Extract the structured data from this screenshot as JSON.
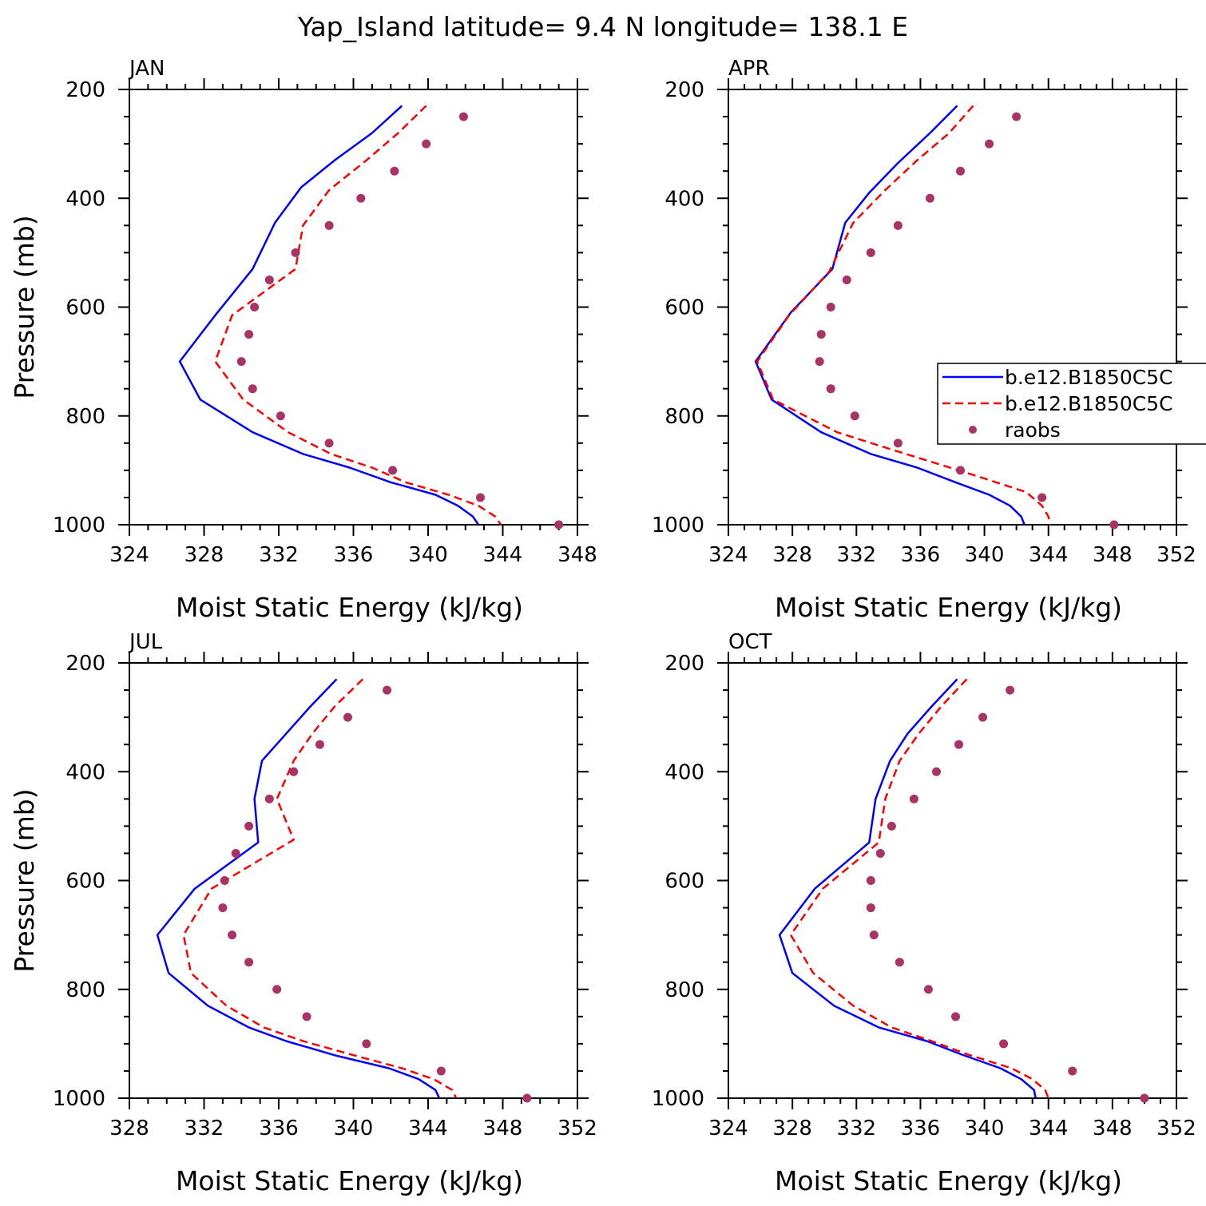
{
  "title": "Yap_Island  latitude= 9.4 N longitude= 138.1 E",
  "legend": {
    "entries": [
      {
        "label": "b.e12.B1850C5C",
        "color": "#0000ff",
        "style": "solid"
      },
      {
        "label": "b.e12.B1850C5C",
        "color": "#ff0000",
        "style": "dashed"
      },
      {
        "label": "raobs",
        "color": "#aa3366",
        "style": "dots"
      }
    ]
  },
  "chart_data": [
    {
      "type": "line",
      "panel_label": "JAN",
      "xlabel": "Moist Static Energy (kJ/kg)",
      "ylabel": "Pressure (mb)",
      "xlim": [
        324,
        348
      ],
      "ylim": [
        200,
        1000
      ],
      "y_inverted": true,
      "xticks": [
        324,
        328,
        332,
        336,
        340,
        344,
        348
      ],
      "yticks": [
        200,
        400,
        600,
        800,
        1000
      ],
      "series": [
        {
          "name": "b.e12.B1850C5C",
          "color": "#0000ff",
          "style": "solid",
          "points": [
            [
              338.6,
              230
            ],
            [
              337.0,
              280
            ],
            [
              335.0,
              330
            ],
            [
              333.2,
              380
            ],
            [
              331.8,
              445
            ],
            [
              330.6,
              530
            ],
            [
              328.6,
              615
            ],
            [
              326.7,
              700
            ],
            [
              327.8,
              770
            ],
            [
              330.6,
              830
            ],
            [
              333.3,
              870
            ],
            [
              335.8,
              895
            ],
            [
              338.0,
              922
            ],
            [
              340.4,
              945
            ],
            [
              341.6,
              965
            ],
            [
              342.4,
              985
            ],
            [
              342.7,
              1000
            ]
          ]
        },
        {
          "name": "b.e12.B1850C5C",
          "color": "#ff0000",
          "style": "dashed",
          "points": [
            [
              339.9,
              230
            ],
            [
              338.4,
              280
            ],
            [
              336.7,
              330
            ],
            [
              334.7,
              385
            ],
            [
              333.3,
              450
            ],
            [
              332.9,
              530
            ],
            [
              329.5,
              615
            ],
            [
              328.6,
              700
            ],
            [
              330.1,
              770
            ],
            [
              332.5,
              830
            ],
            [
              334.8,
              870
            ],
            [
              337.0,
              895
            ],
            [
              338.8,
              922
            ],
            [
              341.1,
              945
            ],
            [
              342.7,
              965
            ],
            [
              343.6,
              985
            ],
            [
              343.9,
              1000
            ]
          ]
        },
        {
          "name": "raobs",
          "color": "#aa3366",
          "style": "dots",
          "points": [
            [
              341.9,
              250
            ],
            [
              339.9,
              300
            ],
            [
              338.2,
              350
            ],
            [
              336.4,
              400
            ],
            [
              334.7,
              450
            ],
            [
              332.9,
              500
            ],
            [
              331.5,
              550
            ],
            [
              330.7,
              600
            ],
            [
              330.4,
              650
            ],
            [
              330.0,
              700
            ],
            [
              330.6,
              750
            ],
            [
              332.1,
              800
            ],
            [
              334.7,
              850
            ],
            [
              338.1,
              900
            ],
            [
              342.8,
              950
            ],
            [
              347.0,
              1000
            ]
          ]
        }
      ]
    },
    {
      "type": "line",
      "panel_label": "APR",
      "xlabel": "Moist Static Energy (kJ/kg)",
      "ylabel": "",
      "xlim": [
        324,
        352
      ],
      "ylim": [
        200,
        1000
      ],
      "y_inverted": true,
      "xticks": [
        324,
        328,
        332,
        336,
        340,
        344,
        348,
        352
      ],
      "yticks": [
        200,
        400,
        600,
        800,
        1000
      ],
      "series": [
        {
          "name": "b.e12.B1850C5C",
          "color": "#0000ff",
          "style": "solid",
          "points": [
            [
              338.3,
              230
            ],
            [
              336.6,
              280
            ],
            [
              334.6,
              335
            ],
            [
              332.8,
              390
            ],
            [
              331.3,
              445
            ],
            [
              330.5,
              530
            ],
            [
              327.9,
              610
            ],
            [
              325.7,
              700
            ],
            [
              326.7,
              770
            ],
            [
              329.8,
              830
            ],
            [
              332.9,
              870
            ],
            [
              335.8,
              895
            ],
            [
              338.2,
              922
            ],
            [
              340.3,
              945
            ],
            [
              341.6,
              965
            ],
            [
              342.3,
              985
            ],
            [
              342.5,
              1000
            ]
          ]
        },
        {
          "name": "b.e12.B1850C5C",
          "color": "#ff0000",
          "style": "dashed",
          "points": [
            [
              339.3,
              230
            ],
            [
              337.8,
              280
            ],
            [
              335.8,
              330
            ],
            [
              333.8,
              385
            ],
            [
              331.8,
              445
            ],
            [
              330.3,
              535
            ],
            [
              327.8,
              615
            ],
            [
              325.8,
              700
            ],
            [
              326.8,
              770
            ],
            [
              330.8,
              830
            ],
            [
              334.0,
              860
            ],
            [
              337.3,
              890
            ],
            [
              340.0,
              915
            ],
            [
              342.6,
              940
            ],
            [
              343.6,
              965
            ],
            [
              344.0,
              985
            ],
            [
              344.1,
              1000
            ]
          ]
        },
        {
          "name": "raobs",
          "color": "#aa3366",
          "style": "dots",
          "points": [
            [
              342.0,
              250
            ],
            [
              340.3,
              300
            ],
            [
              338.5,
              350
            ],
            [
              336.6,
              400
            ],
            [
              334.6,
              450
            ],
            [
              332.9,
              500
            ],
            [
              331.4,
              550
            ],
            [
              330.4,
              600
            ],
            [
              329.8,
              650
            ],
            [
              329.7,
              700
            ],
            [
              330.4,
              750
            ],
            [
              331.9,
              800
            ],
            [
              334.6,
              850
            ],
            [
              338.5,
              900
            ],
            [
              343.6,
              950
            ],
            [
              348.1,
              1000
            ]
          ]
        }
      ]
    },
    {
      "type": "line",
      "panel_label": "JUL",
      "xlabel": "Moist Static Energy (kJ/kg)",
      "ylabel": "Pressure (mb)",
      "xlim": [
        328,
        352
      ],
      "ylim": [
        200,
        1000
      ],
      "y_inverted": true,
      "xticks": [
        328,
        332,
        336,
        340,
        344,
        348,
        352
      ],
      "yticks": [
        200,
        400,
        600,
        800,
        1000
      ],
      "series": [
        {
          "name": "b.e12.B1850C5C",
          "color": "#0000ff",
          "style": "solid",
          "points": [
            [
              339.1,
              230
            ],
            [
              337.7,
              280
            ],
            [
              336.4,
              330
            ],
            [
              335.1,
              380
            ],
            [
              334.7,
              450
            ],
            [
              334.9,
              530
            ],
            [
              331.5,
              615
            ],
            [
              329.5,
              700
            ],
            [
              330.1,
              770
            ],
            [
              332.2,
              830
            ],
            [
              334.4,
              870
            ],
            [
              336.4,
              895
            ],
            [
              339.1,
              922
            ],
            [
              341.9,
              945
            ],
            [
              343.5,
              965
            ],
            [
              344.4,
              985
            ],
            [
              344.6,
              1000
            ]
          ]
        },
        {
          "name": "b.e12.B1850C5C",
          "color": "#ff0000",
          "style": "dashed",
          "points": [
            [
              340.5,
              230
            ],
            [
              339.0,
              280
            ],
            [
              337.8,
              330
            ],
            [
              336.8,
              380
            ],
            [
              335.9,
              450
            ],
            [
              336.8,
              525
            ],
            [
              332.4,
              615
            ],
            [
              330.9,
              700
            ],
            [
              331.3,
              770
            ],
            [
              333.2,
              830
            ],
            [
              335.2,
              870
            ],
            [
              337.3,
              895
            ],
            [
              339.9,
              920
            ],
            [
              342.6,
              945
            ],
            [
              344.3,
              965
            ],
            [
              345.3,
              985
            ],
            [
              345.5,
              1000
            ]
          ]
        },
        {
          "name": "raobs",
          "color": "#aa3366",
          "style": "dots",
          "points": [
            [
              341.8,
              250
            ],
            [
              339.7,
              300
            ],
            [
              338.2,
              350
            ],
            [
              336.8,
              400
            ],
            [
              335.5,
              450
            ],
            [
              334.4,
              500
            ],
            [
              333.7,
              550
            ],
            [
              333.1,
              600
            ],
            [
              333.0,
              650
            ],
            [
              333.5,
              700
            ],
            [
              334.4,
              750
            ],
            [
              335.9,
              800
            ],
            [
              337.5,
              850
            ],
            [
              340.7,
              900
            ],
            [
              344.7,
              950
            ],
            [
              349.3,
              1000
            ]
          ]
        }
      ]
    },
    {
      "type": "line",
      "panel_label": "OCT",
      "xlabel": "Moist Static Energy (kJ/kg)",
      "ylabel": "",
      "xlim": [
        324,
        352
      ],
      "ylim": [
        200,
        1000
      ],
      "y_inverted": true,
      "xticks": [
        324,
        328,
        332,
        336,
        340,
        344,
        348,
        352
      ],
      "yticks": [
        200,
        400,
        600,
        800,
        1000
      ],
      "series": [
        {
          "name": "b.e12.B1850C5C",
          "color": "#0000ff",
          "style": "solid",
          "points": [
            [
              338.3,
              230
            ],
            [
              336.7,
              280
            ],
            [
              335.2,
              330
            ],
            [
              334.1,
              380
            ],
            [
              333.2,
              450
            ],
            [
              332.8,
              530
            ],
            [
              329.4,
              615
            ],
            [
              327.2,
              700
            ],
            [
              328.0,
              770
            ],
            [
              330.6,
              830
            ],
            [
              333.4,
              870
            ],
            [
              336.4,
              895
            ],
            [
              338.6,
              920
            ],
            [
              341.0,
              945
            ],
            [
              342.3,
              965
            ],
            [
              343.1,
              985
            ],
            [
              343.2,
              1000
            ]
          ]
        },
        {
          "name": "b.e12.B1850C5C",
          "color": "#ff0000",
          "style": "dashed",
          "points": [
            [
              338.9,
              230
            ],
            [
              337.3,
              280
            ],
            [
              335.9,
              330
            ],
            [
              334.7,
              380
            ],
            [
              333.8,
              450
            ],
            [
              333.4,
              530
            ],
            [
              329.9,
              615
            ],
            [
              327.9,
              700
            ],
            [
              329.3,
              770
            ],
            [
              331.8,
              830
            ],
            [
              334.2,
              870
            ],
            [
              336.7,
              895
            ],
            [
              339.0,
              920
            ],
            [
              341.7,
              945
            ],
            [
              343.0,
              965
            ],
            [
              343.8,
              985
            ],
            [
              344.0,
              1000
            ]
          ]
        },
        {
          "name": "raobs",
          "color": "#aa3366",
          "style": "dots",
          "points": [
            [
              341.6,
              250
            ],
            [
              339.9,
              300
            ],
            [
              338.4,
              350
            ],
            [
              337.0,
              400
            ],
            [
              335.6,
              450
            ],
            [
              334.2,
              500
            ],
            [
              333.5,
              550
            ],
            [
              332.9,
              600
            ],
            [
              332.9,
              650
            ],
            [
              333.1,
              700
            ],
            [
              334.7,
              750
            ],
            [
              336.5,
              800
            ],
            [
              338.2,
              850
            ],
            [
              341.2,
              900
            ],
            [
              345.5,
              950
            ],
            [
              350.0,
              1000
            ]
          ]
        }
      ]
    }
  ]
}
